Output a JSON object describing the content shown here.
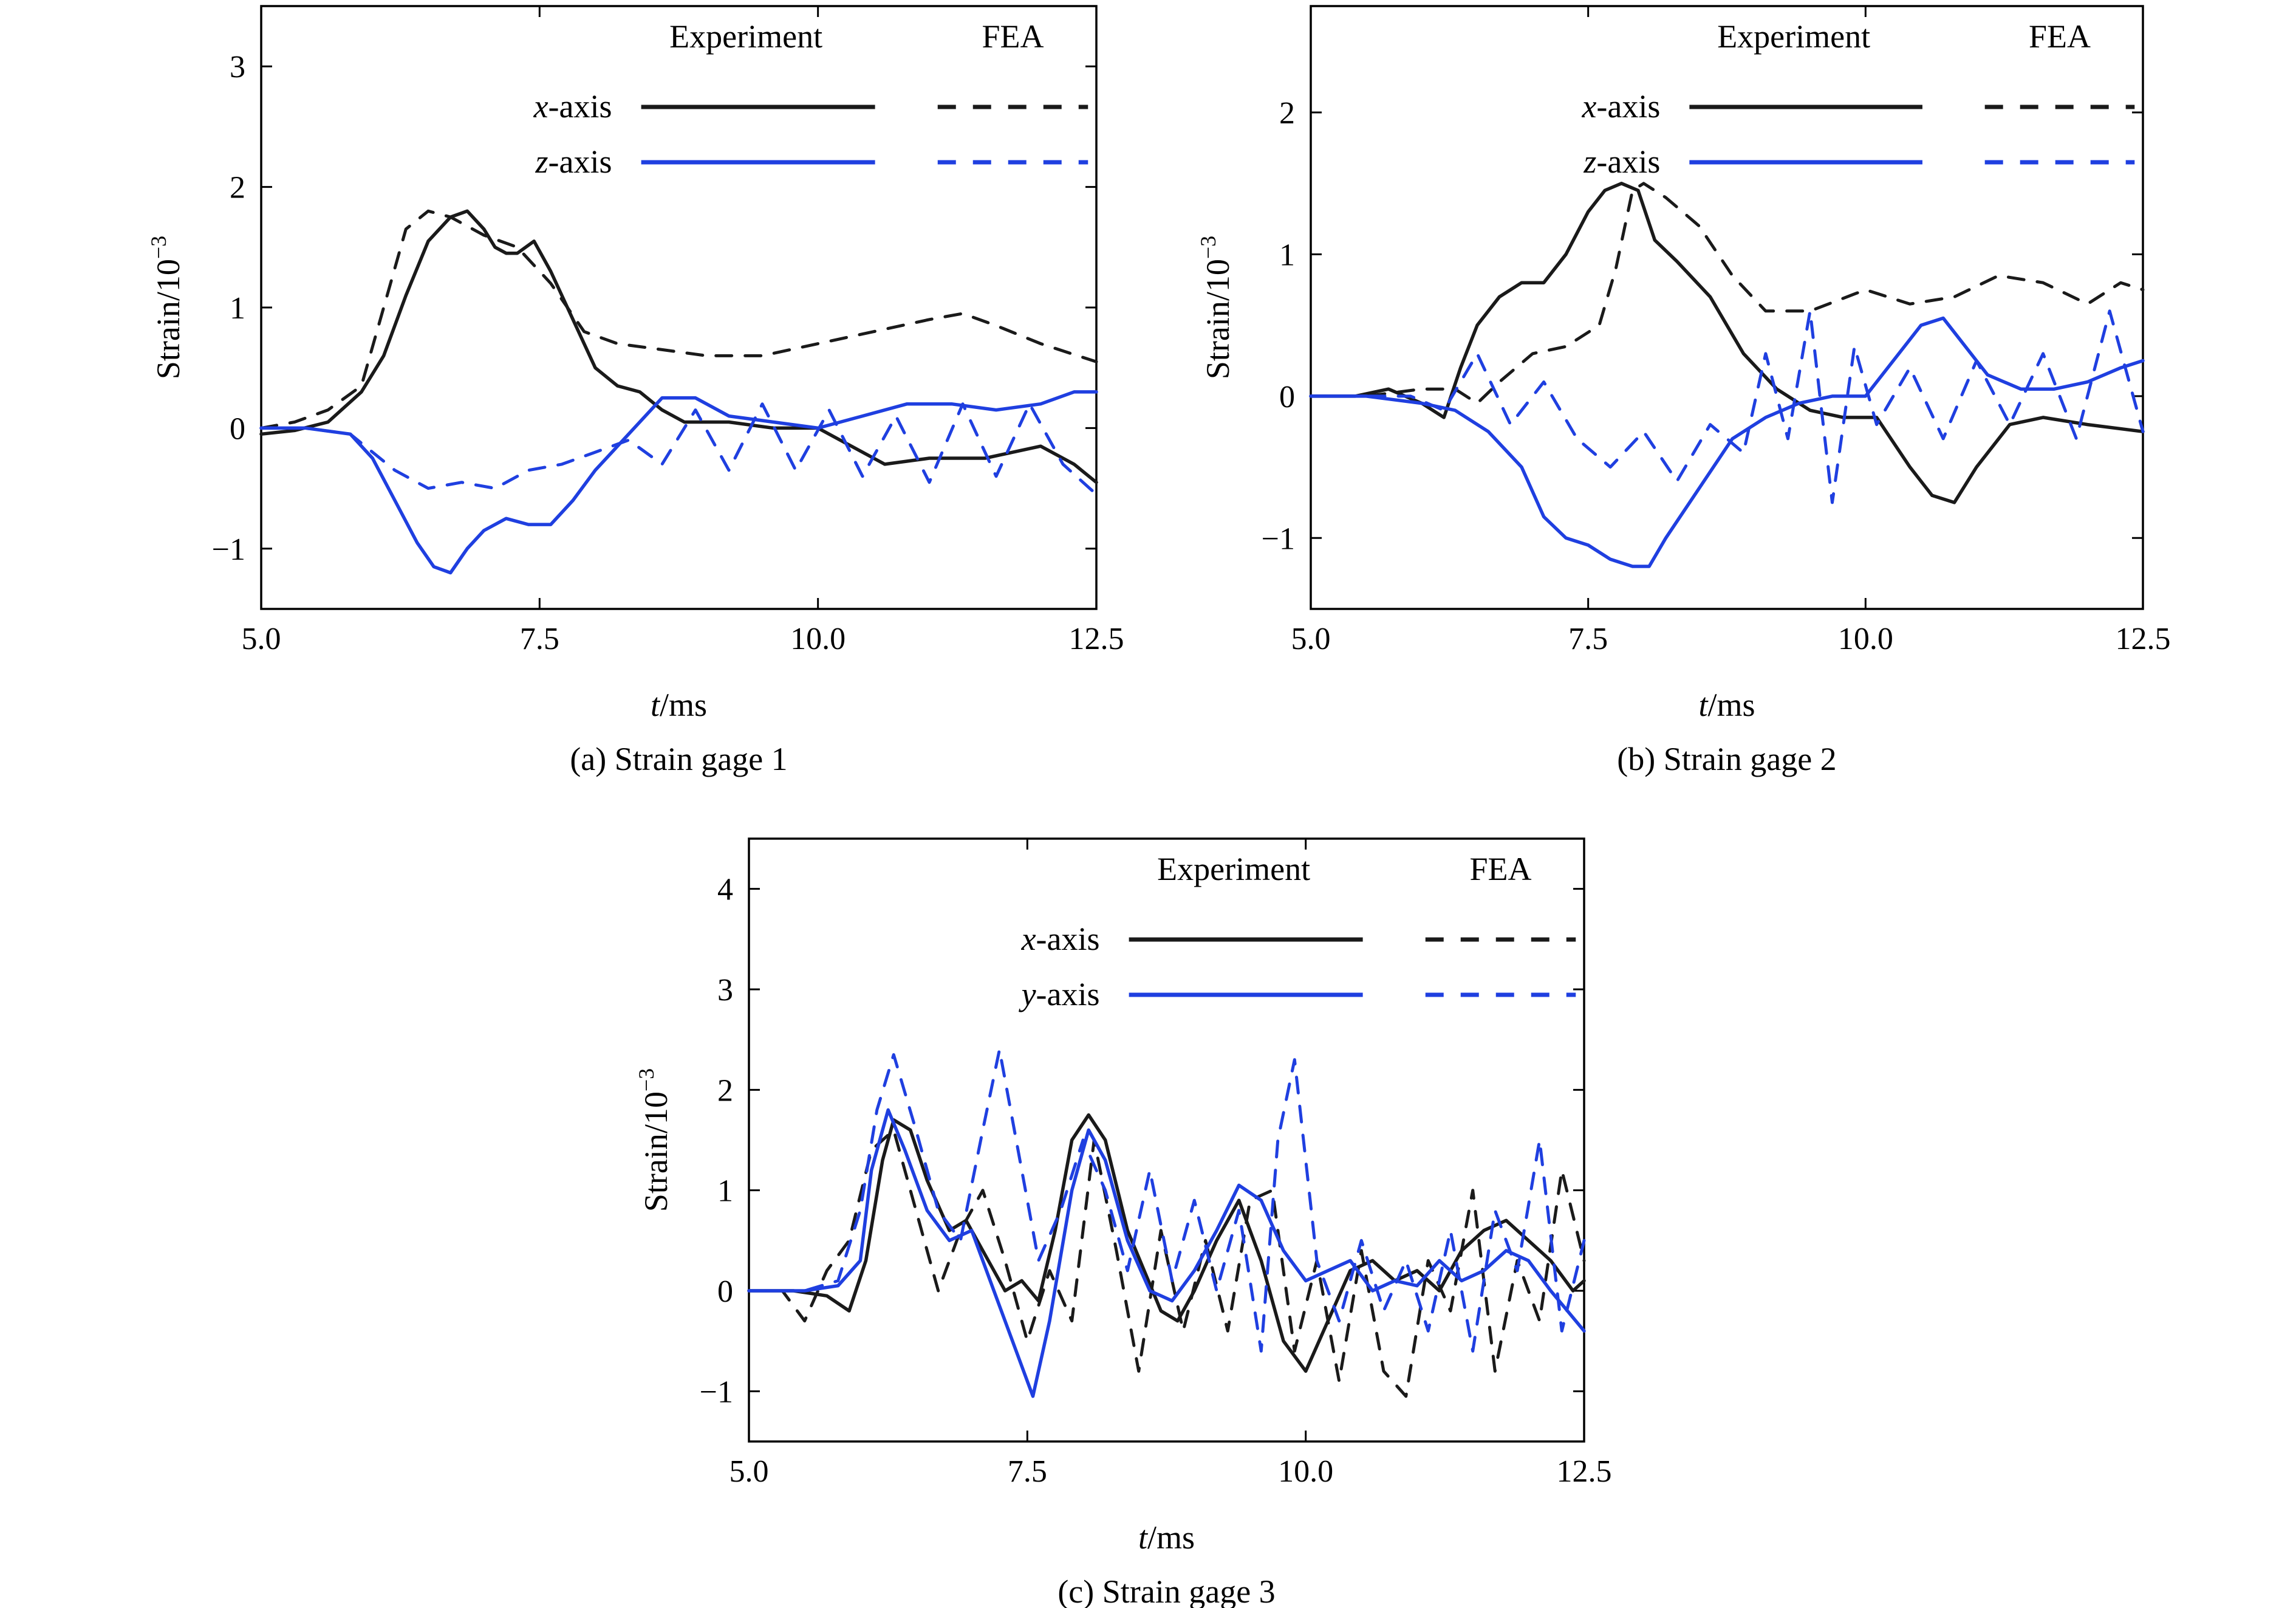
{
  "legend_headers": {
    "experiment": "Experiment",
    "fea": "FEA"
  },
  "colors": {
    "x_axis": "#1a1a1a",
    "second_axis": "#1f3fe0"
  },
  "chart_data": [
    {
      "id": "gage1",
      "type": "line",
      "caption": "(a) Strain gage 1",
      "xlabel_var": "t",
      "xlabel_unit": "/ms",
      "ylabel": "Strain/10",
      "ylabel_exp": "−3",
      "xlim": [
        5.0,
        12.5
      ],
      "ylim": [
        -1.5,
        3.5
      ],
      "xticks": [
        5.0,
        7.5,
        10.0,
        12.5
      ],
      "xtick_labels": [
        "5.0",
        "7.5",
        "10.0",
        "12.5"
      ],
      "yticks": [
        -1,
        0,
        1,
        2,
        3
      ],
      "ytick_labels": [
        "−1",
        "0",
        "1",
        "2",
        "3"
      ],
      "legend_position": "top-right",
      "series": [
        {
          "name": "x-axis",
          "var": "x",
          "source": "Experiment",
          "dashed": false,
          "color": "#1a1a1a",
          "x": [
            5.0,
            5.3,
            5.6,
            5.9,
            6.1,
            6.3,
            6.5,
            6.7,
            6.85,
            7.0,
            7.1,
            7.2,
            7.3,
            7.45,
            7.6,
            7.8,
            8.0,
            8.2,
            8.4,
            8.6,
            8.8,
            9.2,
            9.6,
            10.0,
            10.3,
            10.6,
            11.0,
            11.5,
            12.0,
            12.3,
            12.5
          ],
          "y": [
            -0.05,
            -0.02,
            0.05,
            0.3,
            0.6,
            1.1,
            1.55,
            1.75,
            1.8,
            1.65,
            1.5,
            1.45,
            1.45,
            1.55,
            1.3,
            0.9,
            0.5,
            0.35,
            0.3,
            0.15,
            0.05,
            0.05,
            0.0,
            0.0,
            -0.15,
            -0.3,
            -0.25,
            -0.25,
            -0.15,
            -0.3,
            -0.45
          ]
        },
        {
          "name": "x-axis",
          "var": "x",
          "source": "FEA",
          "dashed": true,
          "color": "#1a1a1a",
          "x": [
            5.0,
            5.3,
            5.6,
            5.9,
            6.1,
            6.3,
            6.5,
            6.7,
            7.0,
            7.3,
            7.6,
            7.9,
            8.2,
            8.6,
            9.0,
            9.5,
            10.0,
            10.5,
            11.0,
            11.3,
            11.6,
            12.0,
            12.5
          ],
          "y": [
            0.0,
            0.05,
            0.15,
            0.35,
            1.0,
            1.65,
            1.8,
            1.75,
            1.6,
            1.5,
            1.2,
            0.8,
            0.7,
            0.65,
            0.6,
            0.6,
            0.7,
            0.8,
            0.9,
            0.95,
            0.85,
            0.7,
            0.55
          ]
        },
        {
          "name": "z-axis",
          "var": "z",
          "source": "Experiment",
          "dashed": false,
          "color": "#1f3fe0",
          "x": [
            5.0,
            5.4,
            5.8,
            6.0,
            6.2,
            6.4,
            6.55,
            6.7,
            6.85,
            7.0,
            7.2,
            7.4,
            7.6,
            7.8,
            8.0,
            8.3,
            8.6,
            8.9,
            9.2,
            9.6,
            10.0,
            10.4,
            10.8,
            11.2,
            11.6,
            12.0,
            12.3,
            12.5
          ],
          "y": [
            0.0,
            0.0,
            -0.05,
            -0.25,
            -0.6,
            -0.95,
            -1.15,
            -1.2,
            -1.0,
            -0.85,
            -0.75,
            -0.8,
            -0.8,
            -0.6,
            -0.35,
            -0.05,
            0.25,
            0.25,
            0.1,
            0.05,
            0.0,
            0.1,
            0.2,
            0.2,
            0.15,
            0.2,
            0.3,
            0.3
          ]
        },
        {
          "name": "z-axis",
          "var": "z",
          "source": "FEA",
          "dashed": true,
          "color": "#1f3fe0",
          "x": [
            5.0,
            5.4,
            5.8,
            6.0,
            6.2,
            6.5,
            6.8,
            7.1,
            7.4,
            7.7,
            8.0,
            8.3,
            8.6,
            8.9,
            9.2,
            9.5,
            9.8,
            10.1,
            10.4,
            10.7,
            11.0,
            11.3,
            11.6,
            11.9,
            12.2,
            12.5
          ],
          "y": [
            0.0,
            0.0,
            -0.05,
            -0.2,
            -0.35,
            -0.5,
            -0.45,
            -0.5,
            -0.35,
            -0.3,
            -0.2,
            -0.1,
            -0.3,
            0.15,
            -0.35,
            0.2,
            -0.35,
            0.15,
            -0.4,
            0.1,
            -0.45,
            0.2,
            -0.4,
            0.2,
            -0.3,
            -0.55
          ]
        }
      ]
    },
    {
      "id": "gage2",
      "type": "line",
      "caption": "(b) Strain gage 2",
      "xlabel_var": "t",
      "xlabel_unit": "/ms",
      "ylabel": "Strain/10",
      "ylabel_exp": "−3",
      "xlim": [
        5.0,
        12.5
      ],
      "ylim": [
        -1.5,
        2.75
      ],
      "xticks": [
        5.0,
        7.5,
        10.0,
        12.5
      ],
      "xtick_labels": [
        "5.0",
        "7.5",
        "10.0",
        "12.5"
      ],
      "yticks": [
        -1,
        0,
        1,
        2
      ],
      "ytick_labels": [
        "−1",
        "0",
        "1",
        "2"
      ],
      "legend_position": "top-right",
      "series": [
        {
          "name": "x-axis",
          "var": "x",
          "source": "Experiment",
          "dashed": false,
          "color": "#1a1a1a",
          "x": [
            5.0,
            5.4,
            5.7,
            6.0,
            6.2,
            6.35,
            6.5,
            6.7,
            6.9,
            7.1,
            7.3,
            7.5,
            7.65,
            7.8,
            7.95,
            8.1,
            8.3,
            8.6,
            8.9,
            9.2,
            9.5,
            9.8,
            10.1,
            10.4,
            10.6,
            10.8,
            11.0,
            11.3,
            11.6,
            12.0,
            12.5
          ],
          "y": [
            0.0,
            0.0,
            0.05,
            -0.05,
            -0.15,
            0.2,
            0.5,
            0.7,
            0.8,
            0.8,
            1.0,
            1.3,
            1.45,
            1.5,
            1.45,
            1.1,
            0.95,
            0.7,
            0.3,
            0.05,
            -0.1,
            -0.15,
            -0.15,
            -0.5,
            -0.7,
            -0.75,
            -0.5,
            -0.2,
            -0.15,
            -0.2,
            -0.25
          ]
        },
        {
          "name": "x-axis",
          "var": "x",
          "source": "FEA",
          "dashed": true,
          "color": "#1a1a1a",
          "x": [
            5.0,
            5.5,
            6.0,
            6.3,
            6.5,
            6.7,
            7.0,
            7.3,
            7.6,
            7.75,
            7.9,
            8.0,
            8.2,
            8.5,
            8.8,
            9.1,
            9.5,
            10.0,
            10.4,
            10.8,
            11.2,
            11.6,
            12.0,
            12.3,
            12.5
          ],
          "y": [
            0.0,
            0.0,
            0.05,
            0.05,
            -0.05,
            0.1,
            0.3,
            0.35,
            0.5,
            0.9,
            1.45,
            1.5,
            1.4,
            1.2,
            0.85,
            0.6,
            0.6,
            0.75,
            0.65,
            0.7,
            0.85,
            0.8,
            0.65,
            0.8,
            0.75
          ]
        },
        {
          "name": "z-axis",
          "var": "z",
          "source": "Experiment",
          "dashed": false,
          "color": "#1f3fe0",
          "x": [
            5.0,
            5.5,
            6.0,
            6.3,
            6.6,
            6.9,
            7.1,
            7.3,
            7.5,
            7.7,
            7.9,
            8.05,
            8.2,
            8.5,
            8.8,
            9.1,
            9.4,
            9.7,
            10.0,
            10.3,
            10.5,
            10.7,
            10.9,
            11.1,
            11.4,
            11.7,
            12.0,
            12.3,
            12.5
          ],
          "y": [
            0.0,
            0.0,
            -0.05,
            -0.1,
            -0.25,
            -0.5,
            -0.85,
            -1.0,
            -1.05,
            -1.15,
            -1.2,
            -1.2,
            -1.0,
            -0.65,
            -0.3,
            -0.15,
            -0.05,
            0.0,
            0.0,
            0.3,
            0.5,
            0.55,
            0.35,
            0.15,
            0.05,
            0.05,
            0.1,
            0.2,
            0.25
          ]
        },
        {
          "name": "z-axis",
          "var": "z",
          "source": "FEA",
          "dashed": true,
          "color": "#1f3fe0",
          "x": [
            5.0,
            5.5,
            5.9,
            6.2,
            6.5,
            6.8,
            7.1,
            7.4,
            7.7,
            8.0,
            8.3,
            8.6,
            8.9,
            9.1,
            9.3,
            9.5,
            9.7,
            9.9,
            10.1,
            10.4,
            10.7,
            11.0,
            11.3,
            11.6,
            11.9,
            12.2,
            12.5
          ],
          "y": [
            0.0,
            0.0,
            0.0,
            -0.1,
            0.3,
            -0.2,
            0.1,
            -0.3,
            -0.5,
            -0.25,
            -0.6,
            -0.2,
            -0.4,
            0.3,
            -0.3,
            0.6,
            -0.75,
            0.35,
            -0.2,
            0.2,
            -0.3,
            0.25,
            -0.2,
            0.3,
            -0.3,
            0.6,
            -0.25
          ]
        }
      ]
    },
    {
      "id": "gage3",
      "type": "line",
      "caption": "(c) Strain gage 3",
      "xlabel_var": "t",
      "xlabel_unit": "/ms",
      "ylabel": "Strain/10",
      "ylabel_exp": "−3",
      "xlim": [
        5.0,
        12.5
      ],
      "ylim": [
        -1.5,
        4.5
      ],
      "xticks": [
        5.0,
        7.5,
        10.0,
        12.5
      ],
      "xtick_labels": [
        "5.0",
        "7.5",
        "10.0",
        "12.5"
      ],
      "yticks": [
        -1,
        0,
        1,
        2,
        3,
        4
      ],
      "ytick_labels": [
        "−1",
        "0",
        "1",
        "2",
        "3",
        "4"
      ],
      "legend_position": "top-right",
      "series": [
        {
          "name": "x-axis",
          "var": "x",
          "source": "Experiment",
          "dashed": false,
          "color": "#1a1a1a",
          "x": [
            5.0,
            5.4,
            5.7,
            5.9,
            6.05,
            6.2,
            6.3,
            6.45,
            6.6,
            6.8,
            6.95,
            7.1,
            7.3,
            7.45,
            7.6,
            7.75,
            7.9,
            8.05,
            8.2,
            8.4,
            8.55,
            8.7,
            8.85,
            9.0,
            9.2,
            9.4,
            9.6,
            9.8,
            10.0,
            10.2,
            10.4,
            10.6,
            10.8,
            11.0,
            11.2,
            11.4,
            11.6,
            11.8,
            12.0,
            12.2,
            12.4,
            12.5
          ],
          "y": [
            0.0,
            0.0,
            -0.05,
            -0.2,
            0.3,
            1.3,
            1.7,
            1.6,
            1.1,
            0.6,
            0.7,
            0.4,
            0.0,
            0.1,
            -0.1,
            0.6,
            1.5,
            1.75,
            1.5,
            0.6,
            0.2,
            -0.2,
            -0.3,
            0.0,
            0.5,
            0.9,
            0.3,
            -0.5,
            -0.8,
            -0.3,
            0.2,
            0.3,
            0.1,
            0.2,
            0.0,
            0.4,
            0.6,
            0.7,
            0.5,
            0.3,
            0.0,
            0.1
          ]
        },
        {
          "name": "x-axis",
          "var": "x",
          "source": "FEA",
          "dashed": true,
          "color": "#1a1a1a",
          "x": [
            5.0,
            5.3,
            5.5,
            5.7,
            5.9,
            6.1,
            6.3,
            6.5,
            6.7,
            6.9,
            7.1,
            7.3,
            7.5,
            7.7,
            7.9,
            8.1,
            8.3,
            8.5,
            8.7,
            8.9,
            9.1,
            9.3,
            9.5,
            9.7,
            9.9,
            10.1,
            10.3,
            10.5,
            10.7,
            10.9,
            11.1,
            11.3,
            11.5,
            11.7,
            11.9,
            12.1,
            12.3,
            12.5
          ],
          "y": [
            0.0,
            0.0,
            -0.3,
            0.2,
            0.5,
            1.4,
            1.6,
            0.8,
            0.0,
            0.6,
            1.0,
            0.3,
            -0.5,
            0.2,
            -0.3,
            1.5,
            0.4,
            -0.8,
            0.6,
            -0.4,
            0.5,
            -0.4,
            0.9,
            1.0,
            -0.6,
            0.3,
            -0.9,
            0.4,
            -0.8,
            -1.05,
            0.3,
            -0.2,
            1.0,
            -0.8,
            0.3,
            -0.3,
            1.2,
            0.3
          ]
        },
        {
          "name": "y-axis",
          "var": "y",
          "source": "Experiment",
          "dashed": false,
          "color": "#1f3fe0",
          "x": [
            5.0,
            5.5,
            5.8,
            6.0,
            6.1,
            6.25,
            6.4,
            6.6,
            6.8,
            7.0,
            7.2,
            7.4,
            7.55,
            7.7,
            7.9,
            8.05,
            8.2,
            8.4,
            8.6,
            8.8,
            9.0,
            9.2,
            9.4,
            9.6,
            9.8,
            10.0,
            10.2,
            10.4,
            10.6,
            10.8,
            11.0,
            11.2,
            11.4,
            11.6,
            11.8,
            12.0,
            12.2,
            12.5
          ],
          "y": [
            0.0,
            0.0,
            0.05,
            0.3,
            1.2,
            1.8,
            1.4,
            0.8,
            0.5,
            0.6,
            0.0,
            -0.6,
            -1.05,
            -0.3,
            1.0,
            1.6,
            1.3,
            0.5,
            0.0,
            -0.1,
            0.2,
            0.6,
            1.05,
            0.9,
            0.4,
            0.1,
            0.2,
            0.3,
            0.0,
            0.1,
            0.05,
            0.3,
            0.1,
            0.2,
            0.4,
            0.3,
            0.0,
            -0.4
          ]
        },
        {
          "name": "y-axis",
          "var": "y",
          "source": "FEA",
          "dashed": true,
          "color": "#1f3fe0",
          "x": [
            5.0,
            5.5,
            5.8,
            6.0,
            6.15,
            6.3,
            6.5,
            6.7,
            6.9,
            7.1,
            7.25,
            7.4,
            7.6,
            7.8,
            8.0,
            8.2,
            8.4,
            8.6,
            8.8,
            9.0,
            9.2,
            9.4,
            9.6,
            9.75,
            9.9,
            10.1,
            10.3,
            10.5,
            10.7,
            10.9,
            11.1,
            11.3,
            11.5,
            11.7,
            11.9,
            12.1,
            12.3,
            12.5
          ],
          "y": [
            0.0,
            0.0,
            0.1,
            0.8,
            1.8,
            2.35,
            1.6,
            0.8,
            0.5,
            1.6,
            2.4,
            1.5,
            0.3,
            0.8,
            1.5,
            1.0,
            0.2,
            1.2,
            0.1,
            0.9,
            0.0,
            0.8,
            -0.6,
            1.5,
            2.3,
            0.3,
            -0.3,
            0.5,
            -0.2,
            0.3,
            -0.4,
            0.6,
            -0.6,
            0.8,
            0.2,
            1.5,
            -0.4,
            0.5
          ]
        }
      ]
    }
  ]
}
